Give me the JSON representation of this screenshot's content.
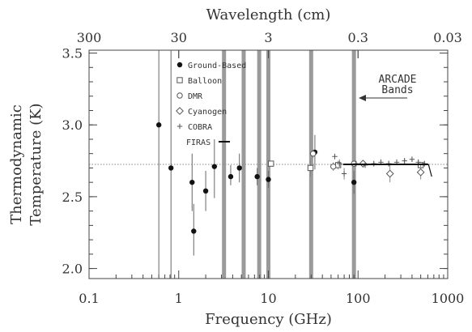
{
  "chart_data": {
    "type": "scatter",
    "title": "",
    "xlabel": "Frequency (GHz)",
    "ylabel": "Thermodynamic Temperature (K)",
    "ylabel_lines": [
      "Thermodynamic",
      "Temperature (K)"
    ],
    "x2label": "Wavelength (cm)",
    "xscale": "log",
    "xlim": [
      0.1,
      1000
    ],
    "ylim": [
      1.93,
      3.52
    ],
    "x_ticks": [
      {
        "value": 0.1,
        "label": "0.1"
      },
      {
        "value": 1,
        "label": "1"
      },
      {
        "value": 10,
        "label": "10"
      },
      {
        "value": 100,
        "label": "100"
      },
      {
        "value": 1000,
        "label": "1000"
      }
    ],
    "y_ticks": [
      {
        "value": 2.0,
        "label": "2.0"
      },
      {
        "value": 2.5,
        "label": "2.5"
      },
      {
        "value": 3.0,
        "label": "3.0"
      },
      {
        "value": 3.5,
        "label": "3.5"
      }
    ],
    "top_ticks": [
      {
        "value": 300,
        "label": "300"
      },
      {
        "value": 30,
        "label": "30"
      },
      {
        "value": 3,
        "label": "3"
      },
      {
        "value": 0.3,
        "label": "0.3"
      },
      {
        "value": 0.03,
        "label": "0.03"
      }
    ],
    "reference_line": {
      "y": 2.725,
      "style": "dotted"
    },
    "arcade_bands_ghz": [
      3.2,
      5.3,
      7.9,
      10.0,
      30.0,
      90.0
    ],
    "legend": {
      "position": "top-center",
      "entries": [
        {
          "marker": "filled-circle",
          "label": "Ground-Based"
        },
        {
          "marker": "open-square",
          "label": "Balloon"
        },
        {
          "marker": "open-circle",
          "label": "DMR"
        },
        {
          "marker": "open-diamond",
          "label": "Cyanogen"
        },
        {
          "marker": "plus",
          "label": "COBRA"
        },
        {
          "marker": "line",
          "label": "FIRAS"
        }
      ]
    },
    "annotation": {
      "lines": [
        "ARCADE",
        "Bands"
      ]
    },
    "series": [
      {
        "name": "Ground-Based",
        "marker": "filled-circle",
        "points": [
          {
            "x": 0.6,
            "y": 3.0,
            "lo": 1.93,
            "hi": 3.52
          },
          {
            "x": 0.82,
            "y": 2.7,
            "lo": 1.93,
            "hi": 3.52
          },
          {
            "x": 1.41,
            "y": 2.6,
            "lo": 2.4,
            "hi": 2.8
          },
          {
            "x": 1.47,
            "y": 2.26,
            "lo": 2.09,
            "hi": 2.45
          },
          {
            "x": 2.0,
            "y": 2.54,
            "lo": 2.4,
            "hi": 2.68
          },
          {
            "x": 2.5,
            "y": 2.71,
            "lo": 2.49,
            "hi": 2.9
          },
          {
            "x": 3.8,
            "y": 2.64,
            "lo": 2.58,
            "hi": 2.72
          },
          {
            "x": 4.75,
            "y": 2.7,
            "lo": 2.6,
            "hi": 2.8
          },
          {
            "x": 7.5,
            "y": 2.64,
            "lo": 2.58,
            "hi": 2.7
          },
          {
            "x": 10.0,
            "y": 2.62,
            "lo": 2.56,
            "hi": 2.68
          },
          {
            "x": 33.0,
            "y": 2.81,
            "lo": 2.69,
            "hi": 2.93
          },
          {
            "x": 90.0,
            "y": 2.6,
            "lo": 2.52,
            "hi": 2.68
          }
        ]
      },
      {
        "name": "Balloon",
        "marker": "open-square",
        "points": [
          {
            "x": 10.7,
            "y": 2.73,
            "lo": 2.72,
            "hi": 2.74
          },
          {
            "x": 29.5,
            "y": 2.7,
            "lo": 2.64,
            "hi": 2.76
          },
          {
            "x": 60.0,
            "y": 2.72,
            "lo": 2.69,
            "hi": 2.75
          },
          {
            "x": 500.0,
            "y": 2.72,
            "lo": 2.7,
            "hi": 2.74
          }
        ]
      },
      {
        "name": "DMR",
        "marker": "open-circle",
        "points": [
          {
            "x": 31.5,
            "y": 2.8,
            "lo": 2.77,
            "hi": 2.83
          },
          {
            "x": 53.0,
            "y": 2.71,
            "lo": 2.68,
            "hi": 2.74
          },
          {
            "x": 90.0,
            "y": 2.73,
            "lo": 2.71,
            "hi": 2.75
          }
        ]
      },
      {
        "name": "Cyanogen",
        "marker": "open-diamond",
        "points": [
          {
            "x": 113.6,
            "y": 2.73,
            "lo": 2.71,
            "hi": 2.75
          },
          {
            "x": 227.0,
            "y": 2.66,
            "lo": 2.6,
            "hi": 2.72
          },
          {
            "x": 500.0,
            "y": 2.67,
            "lo": 2.62,
            "hi": 2.72
          }
        ]
      },
      {
        "name": "COBRA",
        "marker": "plus",
        "points": [
          {
            "x": 55.0,
            "y": 2.78,
            "lo": 2.76,
            "hi": 2.8
          },
          {
            "x": 62.0,
            "y": 2.73,
            "lo": 2.7,
            "hi": 2.76
          },
          {
            "x": 70.0,
            "y": 2.66,
            "lo": 2.62,
            "hi": 2.7
          },
          {
            "x": 95.0,
            "y": 2.73,
            "lo": 2.71,
            "hi": 2.75
          },
          {
            "x": 120.0,
            "y": 2.72,
            "lo": 2.7,
            "hi": 2.74
          },
          {
            "x": 150.0,
            "y": 2.73,
            "lo": 2.71,
            "hi": 2.75
          },
          {
            "x": 180.0,
            "y": 2.74,
            "lo": 2.72,
            "hi": 2.76
          },
          {
            "x": 220.0,
            "y": 2.73,
            "lo": 2.71,
            "hi": 2.75
          },
          {
            "x": 270.0,
            "y": 2.74,
            "lo": 2.72,
            "hi": 2.76
          },
          {
            "x": 330.0,
            "y": 2.75,
            "lo": 2.73,
            "hi": 2.77
          },
          {
            "x": 400.0,
            "y": 2.76,
            "lo": 2.74,
            "hi": 2.78
          },
          {
            "x": 470.0,
            "y": 2.74,
            "lo": 2.72,
            "hi": 2.76
          },
          {
            "x": 550.0,
            "y": 2.73,
            "lo": 2.71,
            "hi": 2.75
          }
        ]
      },
      {
        "name": "FIRAS",
        "marker": "line",
        "points": [
          {
            "x": 68,
            "y": 2.725
          },
          {
            "x": 300,
            "y": 2.725
          },
          {
            "x": 610,
            "y": 2.725
          }
        ]
      }
    ]
  }
}
